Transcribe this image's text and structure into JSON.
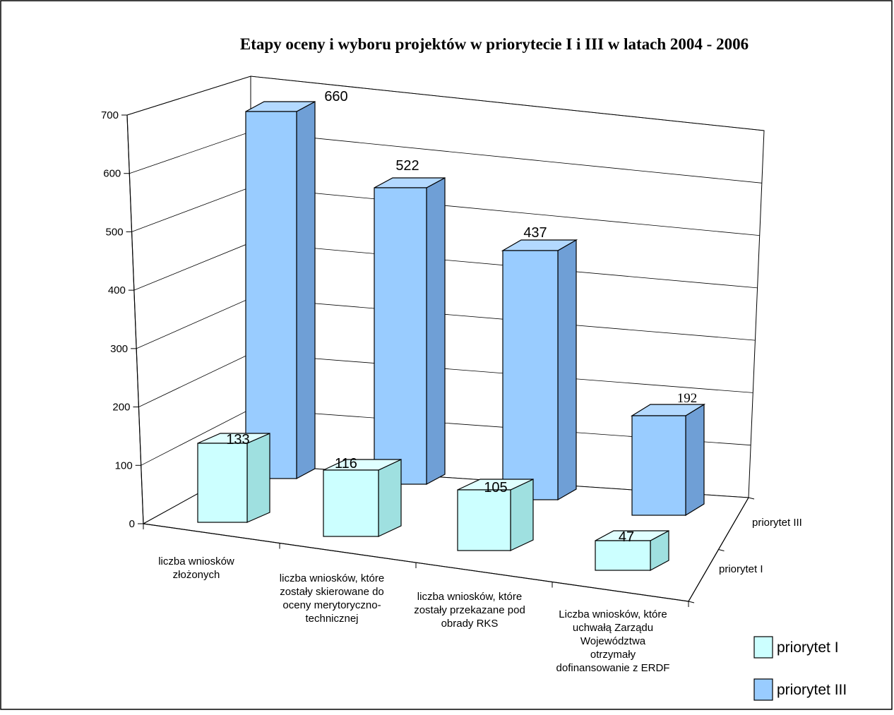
{
  "chart_data": {
    "type": "bar",
    "title": "Etapy oceny i wyboru projektów w priorytecie I i III w latach 2004 - 2006",
    "categories": [
      [
        "liczba wniosków",
        "złożonych"
      ],
      [
        "liczba wniosków, które",
        "zostały skierowane do",
        "oceny merytoryczno-",
        "technicznej"
      ],
      [
        "liczba wniosków, które",
        "zostały przekazane pod",
        "obrady RKS"
      ],
      [
        "Liczba wniosków, które",
        "uchwałą Zarządu",
        "Województwa",
        "otrzymały",
        "dofinansowanie z ERDF"
      ]
    ],
    "series": [
      {
        "name": "priorytet I",
        "values": [
          133,
          116,
          105,
          47
        ],
        "color": "#ccffff"
      },
      {
        "name": "priorytet III",
        "values": [
          660,
          522,
          437,
          192
        ],
        "color": "#99ccff"
      }
    ],
    "ylim": [
      0,
      700
    ],
    "yticks": [
      "0",
      "100",
      "200",
      "300",
      "400",
      "500",
      "600",
      "700"
    ],
    "grid": true,
    "legend": "bottom-right",
    "data_labels": [
      "133",
      "116",
      "105",
      "47",
      "660",
      "522",
      "437",
      "192"
    ]
  }
}
